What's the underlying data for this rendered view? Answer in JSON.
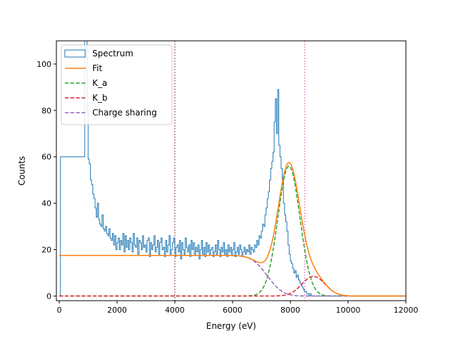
{
  "chart_data": {
    "type": "line",
    "title": "",
    "xlabel": "Energy (eV)",
    "ylabel": "Counts",
    "xlim": [
      -100,
      12000
    ],
    "ylim": [
      -2,
      110
    ],
    "x_ticks": [
      0,
      2000,
      4000,
      6000,
      8000,
      10000,
      12000
    ],
    "x_tick_labels": [
      "0",
      "2000",
      "4000",
      "6000",
      "8000",
      "10000",
      "12000"
    ],
    "y_ticks": [
      0,
      20,
      40,
      60,
      80,
      100
    ],
    "y_tick_labels": [
      "0",
      "20",
      "40",
      "60",
      "80",
      "100"
    ],
    "grid": false,
    "legend_position": "top-left",
    "spectrum": {
      "name": "Spectrum",
      "color": "#1f77b4",
      "bin_width": 40,
      "x_start": 0,
      "counts": [
        0,
        60,
        60,
        60,
        60,
        60,
        60,
        60,
        60,
        60,
        60,
        60,
        60,
        60,
        60,
        60,
        60,
        60,
        60,
        60,
        60,
        60,
        110,
        110,
        80,
        59,
        57,
        50,
        48,
        44,
        42,
        38,
        34,
        40,
        33,
        31,
        30,
        35,
        29,
        28,
        30,
        27,
        26,
        29,
        25,
        24,
        27,
        22,
        26,
        20,
        23,
        25,
        20,
        24,
        22,
        27,
        19,
        26,
        21,
        24,
        20,
        25,
        23,
        19,
        27,
        22,
        21,
        25,
        18,
        24,
        23,
        20,
        26,
        21,
        22,
        19,
        24,
        25,
        17,
        23,
        20,
        22,
        26,
        19,
        21,
        24,
        18,
        23,
        25,
        20,
        21,
        17,
        24,
        19,
        22,
        26,
        18,
        20,
        23,
        25,
        17,
        21,
        22,
        19,
        24,
        16,
        23,
        20,
        18,
        25,
        21,
        19,
        22,
        17,
        24,
        20,
        23,
        18,
        21,
        19,
        22,
        16,
        20,
        24,
        18,
        21,
        17,
        23,
        19,
        22,
        18,
        20,
        21,
        17,
        19,
        22,
        18,
        24,
        20,
        17,
        21,
        19,
        23,
        18,
        20,
        17,
        22,
        19,
        21,
        18,
        20,
        23,
        17,
        19,
        21,
        18,
        22,
        20,
        17,
        19,
        21,
        18,
        20,
        19,
        22,
        18,
        21,
        20,
        19,
        22,
        21,
        24,
        22,
        26,
        25,
        28,
        31,
        30,
        35,
        38,
        42,
        45,
        50,
        55,
        58,
        62,
        75,
        85,
        70,
        89,
        65,
        60,
        55,
        50,
        40,
        35,
        32,
        28,
        22,
        18,
        15,
        14,
        12,
        10,
        11,
        8,
        9,
        7,
        6,
        5,
        4,
        3,
        2,
        2,
        1,
        1,
        0,
        1,
        0,
        0,
        0,
        0,
        0,
        0,
        0,
        0,
        0,
        0,
        0,
        0,
        0,
        0,
        0,
        0,
        0,
        0,
        0,
        0,
        0,
        0,
        0,
        0
      ]
    },
    "series": [
      {
        "name": "Fit",
        "color": "#ff7f0e",
        "style": "solid"
      },
      {
        "name": "K_a",
        "color": "#2ca02c",
        "style": "dashed"
      },
      {
        "name": "K_b",
        "color": "#d62728",
        "style": "dashed"
      },
      {
        "name": "Charge sharing",
        "color": "#9467bd",
        "style": "dashed"
      }
    ],
    "model": {
      "background_level": 17.5,
      "k_a": {
        "amplitude": 56,
        "center": 7950,
        "sigma": 380
      },
      "k_b": {
        "amplitude": 8.5,
        "center": 8800,
        "sigma": 400
      },
      "charge_sharing": {
        "level": 17.5,
        "edge": 7200,
        "width": 600
      }
    },
    "vertical_lines": [
      {
        "x": 4000,
        "color": "#8c564b",
        "style": "dotted"
      },
      {
        "x": 8500,
        "color": "#e377c2",
        "style": "dotted"
      }
    ]
  }
}
